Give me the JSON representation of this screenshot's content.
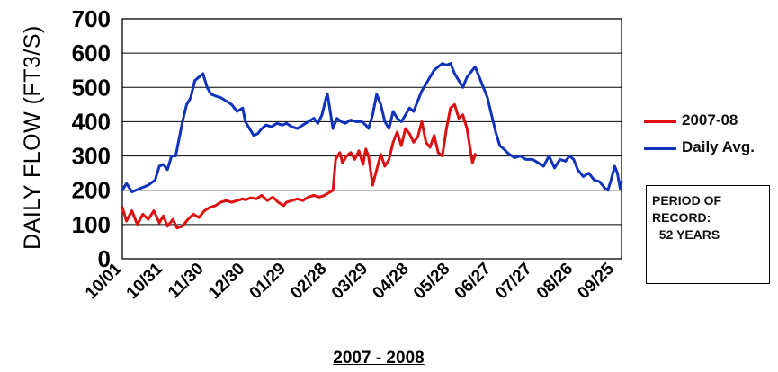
{
  "chart_data": {
    "type": "line",
    "xlabel": "2007 - 2008",
    "ylabel": "DAILY FLOW (FT3/S)",
    "ylim": [
      0,
      700
    ],
    "yticks": [
      0,
      100,
      200,
      300,
      400,
      500,
      600,
      700
    ],
    "xticks": [
      "10/01",
      "10/31",
      "11/30",
      "12/30",
      "01/29",
      "02/28",
      "03/29",
      "04/28",
      "05/28",
      "06/27",
      "07/27",
      "08/26",
      "09/25"
    ],
    "grid": true,
    "legend_placement": "right",
    "series": [
      {
        "name": "2007-08",
        "color": "#dd1111",
        "points": [
          [
            "10/01",
            150
          ],
          [
            "10/04",
            110
          ],
          [
            "10/08",
            140
          ],
          [
            "10/12",
            100
          ],
          [
            "10/16",
            130
          ],
          [
            "10/20",
            115
          ],
          [
            "10/24",
            140
          ],
          [
            "10/28",
            105
          ],
          [
            "10/31",
            125
          ],
          [
            "11/03",
            95
          ],
          [
            "11/07",
            115
          ],
          [
            "11/10",
            90
          ],
          [
            "11/14",
            95
          ],
          [
            "11/18",
            115
          ],
          [
            "11/22",
            130
          ],
          [
            "11/26",
            120
          ],
          [
            "11/30",
            140
          ],
          [
            "12/04",
            150
          ],
          [
            "12/08",
            155
          ],
          [
            "12/12",
            165
          ],
          [
            "12/16",
            170
          ],
          [
            "12/20",
            165
          ],
          [
            "12/24",
            170
          ],
          [
            "12/28",
            175
          ],
          [
            "12/30",
            172
          ],
          [
            "01/03",
            178
          ],
          [
            "01/07",
            175
          ],
          [
            "01/11",
            185
          ],
          [
            "01/15",
            170
          ],
          [
            "01/19",
            180
          ],
          [
            "01/23",
            165
          ],
          [
            "01/27",
            155
          ],
          [
            "01/29",
            165
          ],
          [
            "02/02",
            170
          ],
          [
            "02/06",
            175
          ],
          [
            "02/10",
            170
          ],
          [
            "02/14",
            180
          ],
          [
            "02/18",
            185
          ],
          [
            "02/22",
            180
          ],
          [
            "02/26",
            185
          ],
          [
            "02/28",
            190
          ],
          [
            "03/03",
            200
          ],
          [
            "03/05",
            290
          ],
          [
            "03/08",
            310
          ],
          [
            "03/10",
            280
          ],
          [
            "03/13",
            300
          ],
          [
            "03/16",
            310
          ],
          [
            "03/19",
            290
          ],
          [
            "03/22",
            315
          ],
          [
            "03/25",
            275
          ],
          [
            "03/27",
            320
          ],
          [
            "03/29",
            300
          ],
          [
            "04/01",
            215
          ],
          [
            "04/04",
            260
          ],
          [
            "04/07",
            305
          ],
          [
            "04/10",
            270
          ],
          [
            "04/13",
            290
          ],
          [
            "04/16",
            340
          ],
          [
            "04/19",
            370
          ],
          [
            "04/22",
            330
          ],
          [
            "04/25",
            380
          ],
          [
            "04/28",
            365
          ],
          [
            "05/01",
            340
          ],
          [
            "05/04",
            355
          ],
          [
            "05/07",
            400
          ],
          [
            "05/10",
            340
          ],
          [
            "05/13",
            325
          ],
          [
            "05/16",
            360
          ],
          [
            "05/19",
            310
          ],
          [
            "05/22",
            300
          ],
          [
            "05/25",
            380
          ],
          [
            "05/28",
            440
          ],
          [
            "05/31",
            450
          ],
          [
            "06/03",
            410
          ],
          [
            "06/06",
            420
          ],
          [
            "06/09",
            380
          ],
          [
            "06/11",
            330
          ],
          [
            "06/13",
            280
          ],
          [
            "06/15",
            305
          ]
        ]
      },
      {
        "name": "Daily Avg.",
        "color": "#1133bb",
        "points": [
          [
            "10/01",
            200
          ],
          [
            "10/04",
            220
          ],
          [
            "10/08",
            195
          ],
          [
            "10/14",
            205
          ],
          [
            "10/20",
            215
          ],
          [
            "10/25",
            230
          ],
          [
            "10/28",
            270
          ],
          [
            "10/31",
            275
          ],
          [
            "11/03",
            260
          ],
          [
            "11/06",
            300
          ],
          [
            "11/09",
            300
          ],
          [
            "11/12",
            360
          ],
          [
            "11/14",
            400
          ],
          [
            "11/17",
            450
          ],
          [
            "11/20",
            470
          ],
          [
            "11/23",
            520
          ],
          [
            "11/26",
            530
          ],
          [
            "11/29",
            540
          ],
          [
            "12/02",
            500
          ],
          [
            "12/05",
            480
          ],
          [
            "12/08",
            475
          ],
          [
            "12/12",
            470
          ],
          [
            "12/16",
            460
          ],
          [
            "12/20",
            450
          ],
          [
            "12/24",
            430
          ],
          [
            "12/28",
            440
          ],
          [
            "12/30",
            400
          ],
          [
            "01/02",
            380
          ],
          [
            "01/05",
            360
          ],
          [
            "01/08",
            365
          ],
          [
            "01/11",
            380
          ],
          [
            "01/14",
            390
          ],
          [
            "01/18",
            385
          ],
          [
            "01/22",
            395
          ],
          [
            "01/26",
            390
          ],
          [
            "01/29",
            395
          ],
          [
            "02/02",
            385
          ],
          [
            "02/06",
            380
          ],
          [
            "02/10",
            390
          ],
          [
            "02/14",
            400
          ],
          [
            "02/18",
            410
          ],
          [
            "02/21",
            395
          ],
          [
            "02/24",
            420
          ],
          [
            "02/27",
            470
          ],
          [
            "02/28",
            480
          ],
          [
            "03/03",
            380
          ],
          [
            "03/06",
            410
          ],
          [
            "03/09",
            400
          ],
          [
            "03/12",
            395
          ],
          [
            "03/16",
            405
          ],
          [
            "03/20",
            400
          ],
          [
            "03/24",
            400
          ],
          [
            "03/27",
            390
          ],
          [
            "03/29",
            380
          ],
          [
            "04/01",
            420
          ],
          [
            "04/04",
            480
          ],
          [
            "04/07",
            450
          ],
          [
            "04/10",
            400
          ],
          [
            "04/13",
            380
          ],
          [
            "04/16",
            430
          ],
          [
            "04/19",
            410
          ],
          [
            "04/22",
            400
          ],
          [
            "04/25",
            420
          ],
          [
            "04/28",
            440
          ],
          [
            "05/01",
            430
          ],
          [
            "05/04",
            460
          ],
          [
            "05/07",
            490
          ],
          [
            "05/10",
            510
          ],
          [
            "05/13",
            530
          ],
          [
            "05/16",
            550
          ],
          [
            "05/19",
            560
          ],
          [
            "05/22",
            570
          ],
          [
            "05/25",
            565
          ],
          [
            "05/28",
            570
          ],
          [
            "05/31",
            540
          ],
          [
            "06/03",
            520
          ],
          [
            "06/06",
            500
          ],
          [
            "06/09",
            530
          ],
          [
            "06/12",
            545
          ],
          [
            "06/15",
            560
          ],
          [
            "06/18",
            530
          ],
          [
            "06/21",
            500
          ],
          [
            "06/24",
            470
          ],
          [
            "06/27",
            420
          ],
          [
            "06/30",
            370
          ],
          [
            "07/03",
            330
          ],
          [
            "07/06",
            320
          ],
          [
            "07/10",
            305
          ],
          [
            "07/14",
            295
          ],
          [
            "07/18",
            300
          ],
          [
            "07/22",
            290
          ],
          [
            "07/27",
            290
          ],
          [
            "07/31",
            280
          ],
          [
            "08/04",
            270
          ],
          [
            "08/08",
            300
          ],
          [
            "08/12",
            265
          ],
          [
            "08/16",
            290
          ],
          [
            "08/20",
            285
          ],
          [
            "08/23",
            300
          ],
          [
            "08/26",
            290
          ],
          [
            "08/29",
            260
          ],
          [
            "09/02",
            240
          ],
          [
            "09/06",
            250
          ],
          [
            "09/10",
            230
          ],
          [
            "09/14",
            225
          ],
          [
            "09/18",
            205
          ],
          [
            "09/20",
            200
          ],
          [
            "09/22",
            225
          ],
          [
            "09/24",
            255
          ],
          [
            "09/25",
            270
          ],
          [
            "09/27",
            250
          ],
          [
            "09/29",
            205
          ],
          [
            "09/30",
            225
          ]
        ]
      }
    ],
    "annotation": "PERIOD OF\nRECORD:\n  52 YEARS"
  }
}
